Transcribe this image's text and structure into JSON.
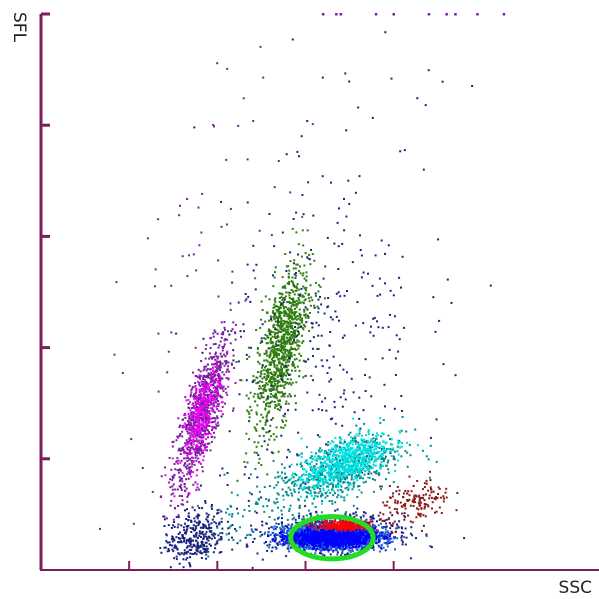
{
  "chart_data": {
    "type": "scatter",
    "title": "",
    "xlabel": "SSC",
    "ylabel": "SFL",
    "xlim": [
      0,
      100
    ],
    "ylim": [
      0,
      100
    ],
    "x_tick_values": [
      20,
      40,
      60,
      80
    ],
    "y_tick_values": [
      20,
      40,
      60,
      80,
      100
    ],
    "grid": false,
    "axis_color": "#7a1f5a",
    "series": [
      {
        "color": "#7b1fa2",
        "clusters": [
          {
            "x": 36.5,
            "y": 28.0,
            "sx": 3.2,
            "sy": 7.0,
            "rho": 0.78,
            "n": 900
          },
          {
            "x": 38.0,
            "y": 62.0,
            "sx": 11.0,
            "sy": 22.0,
            "rho": 0.7,
            "n": 60
          }
        ]
      },
      {
        "color": "#ff00ff",
        "clusters": [
          {
            "x": 36.5,
            "y": 27.5,
            "sx": 2.2,
            "sy": 4.5,
            "rho": 0.65,
            "n": 260
          }
        ]
      },
      {
        "color": "#2e7d10",
        "clusters": [
          {
            "x": 54.5,
            "y": 40.0,
            "sx": 3.0,
            "sy": 7.5,
            "rho": 0.6,
            "n": 1000
          }
        ]
      },
      {
        "color": "#1a237e",
        "clusters": [
          {
            "x": 35.0,
            "y": 6.0,
            "sx": 3.5,
            "sy": 2.6,
            "rho": 0.3,
            "n": 330
          },
          {
            "x": 63.0,
            "y": 38.0,
            "sx": 11.0,
            "sy": 16.0,
            "rho": 0.2,
            "n": 300
          },
          {
            "x": 70.0,
            "y": 60.0,
            "sx": 20.0,
            "sy": 30.0,
            "rho": 0.1,
            "n": 50
          },
          {
            "x": 66.0,
            "y": 6.5,
            "sx": 7.0,
            "sy": 1.6,
            "rho": 0.1,
            "n": 800
          }
        ]
      },
      {
        "color": "#1e5fd8",
        "clusters": [
          {
            "x": 66.0,
            "y": 6.0,
            "sx": 6.0,
            "sy": 1.1,
            "rho": 0.0,
            "n": 1500
          }
        ]
      },
      {
        "color": "#0000ff",
        "clusters": [
          {
            "x": 66.0,
            "y": 5.8,
            "sx": 4.8,
            "sy": 0.8,
            "rho": 0.0,
            "n": 1100
          }
        ]
      },
      {
        "color": "#ff0000",
        "clusters": [
          {
            "x": 69.0,
            "y": 8.0,
            "sx": 3.0,
            "sy": 0.45,
            "rho": 0.0,
            "n": 260
          }
        ]
      },
      {
        "color": "#008b8b",
        "clusters": [
          {
            "x": 67.0,
            "y": 17.5,
            "sx": 7.5,
            "sy": 3.6,
            "rho": 0.55,
            "n": 600
          },
          {
            "x": 44.0,
            "y": 10.0,
            "sx": 4.0,
            "sy": 3.0,
            "rho": 0.1,
            "n": 40
          }
        ]
      },
      {
        "color": "#00e0e0",
        "clusters": [
          {
            "x": 69.0,
            "y": 19.5,
            "sx": 5.0,
            "sy": 2.5,
            "rho": 0.6,
            "n": 700
          }
        ]
      },
      {
        "color": "#8b1a1a",
        "clusters": [
          {
            "x": 85.0,
            "y": 12.0,
            "sx": 4.0,
            "sy": 2.0,
            "rho": 0.3,
            "n": 160
          }
        ]
      }
    ],
    "saturated_top_x": [
      64,
      67,
      68,
      76,
      80,
      88,
      92,
      94,
      99,
      105
    ],
    "annotations": [
      {
        "shape": "ellipse",
        "color": "#22dd22",
        "cx": 66.0,
        "cy": 5.8,
        "rx": 22.0,
        "ry": 7.6,
        "label": ""
      }
    ]
  }
}
